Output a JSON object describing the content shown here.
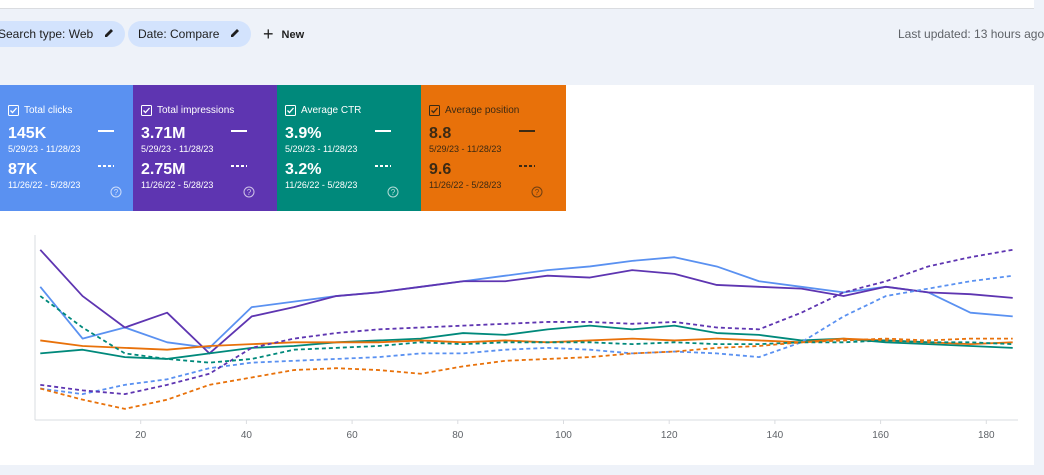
{
  "filters": {
    "search_type": "Search type: Web",
    "date": "Date: Compare",
    "new": "New",
    "last_updated": "Last updated: 13 hours ago"
  },
  "cards": [
    {
      "current": "145K",
      "current_range": "5/29/23 - 11/28/23",
      "previous": "87K",
      "previous_range": "11/26/22 - 5/28/23"
    },
    {
      "current": "3.71M",
      "current_range": "5/29/23 - 11/28/23",
      "previous": "2.75M",
      "previous_range": "11/26/22 - 5/28/23"
    },
    {
      "current": "3.9%",
      "current_range": "5/29/23 - 11/28/23",
      "previous": "3.2%",
      "previous_range": "11/26/22 - 5/28/23"
    },
    {
      "current": "8.8",
      "current_range": "5/29/23 - 11/28/23",
      "previous": "9.6",
      "previous_range": "11/26/22 - 5/28/23"
    }
  ],
  "chart_data": {
    "type": "line",
    "x": [
      1,
      9,
      17,
      25,
      33,
      41,
      49,
      57,
      65,
      73,
      81,
      89,
      97,
      105,
      113,
      121,
      129,
      137,
      145,
      153,
      161,
      169,
      177,
      185
    ],
    "xlim": [
      0,
      186
    ],
    "xticks": [
      20,
      40,
      60,
      80,
      100,
      120,
      140,
      160,
      180
    ],
    "ylim": [
      0,
      100
    ],
    "grid": false,
    "series": [
      {
        "name": "Total clicks",
        "color": "#5a91f1",
        "dashed": false,
        "values": [
          72,
          44,
          50,
          42,
          39,
          61,
          64,
          67,
          69,
          72,
          75,
          78,
          81,
          83,
          86,
          88,
          83,
          75,
          72,
          69,
          72,
          69,
          58,
          56
        ]
      },
      {
        "name": "Total impressions",
        "color": "#5e35b1",
        "dashed": false,
        "values": [
          92,
          67,
          50,
          58,
          36,
          56,
          61,
          67,
          69,
          72,
          75,
          75,
          78,
          77,
          81,
          79,
          73,
          72,
          71,
          67,
          72,
          69,
          68,
          66
        ]
      },
      {
        "name": "Average CTR",
        "color": "#00897b",
        "dashed": false,
        "values": [
          36,
          38,
          34,
          33,
          36,
          39,
          40,
          42,
          43,
          44,
          47,
          46,
          49,
          51,
          49,
          51,
          47,
          46,
          43,
          44,
          42,
          41,
          40,
          39
        ]
      },
      {
        "name": "Average position",
        "color": "#e8710a",
        "dashed": false,
        "values": [
          43,
          40,
          39,
          38,
          40,
          41,
          42,
          42,
          42,
          43,
          42,
          43,
          42,
          43,
          44,
          43,
          44,
          43,
          42,
          44,
          43,
          42,
          41,
          42
        ]
      },
      {
        "color": "#5a91f1",
        "dashed": true,
        "values": [
          17,
          14,
          19,
          22,
          28,
          31,
          32,
          33,
          34,
          36,
          36,
          38,
          39,
          38,
          36,
          37,
          36,
          34,
          42,
          56,
          67,
          71,
          75,
          78
        ]
      },
      {
        "color": "#5e35b1",
        "dashed": true,
        "values": [
          19,
          16,
          14,
          19,
          25,
          39,
          44,
          47,
          49,
          50,
          51,
          52,
          53,
          53,
          52,
          53,
          50,
          49,
          58,
          69,
          75,
          83,
          88,
          92
        ]
      },
      {
        "color": "#00897b",
        "dashed": true,
        "values": [
          67,
          50,
          36,
          33,
          31,
          33,
          38,
          39,
          40,
          42,
          41,
          42,
          42,
          42,
          41,
          42,
          41,
          41,
          42,
          42,
          43,
          42,
          42,
          41
        ]
      },
      {
        "color": "#e8710a",
        "dashed": true,
        "values": [
          17,
          11,
          6,
          11,
          19,
          23,
          27,
          28,
          27,
          25,
          29,
          32,
          33,
          34,
          36,
          37,
          39,
          40,
          42,
          43,
          44,
          43,
          44,
          44
        ]
      }
    ]
  }
}
